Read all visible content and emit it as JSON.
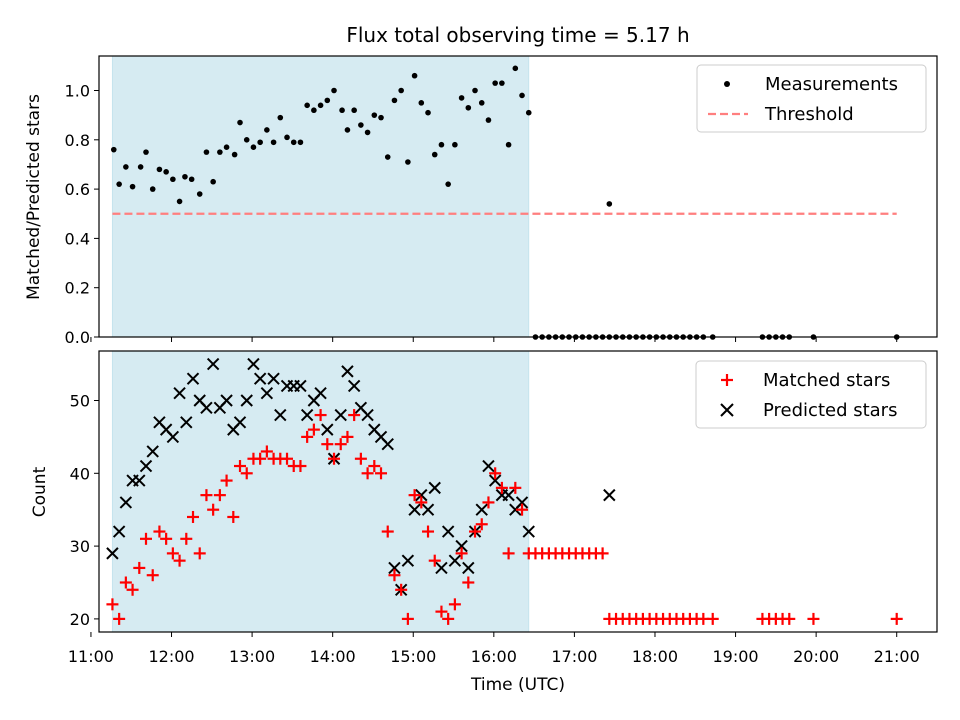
{
  "chart_data": [
    {
      "type": "scatter",
      "title": "Flux total observing time = 5.17 h",
      "xlabel": "",
      "ylabel": "Matched/Predicted stars",
      "xlim": [
        "11:06",
        "21:30"
      ],
      "ylim": [
        0,
        1.14
      ],
      "yticks": [
        "0.0",
        "0.2",
        "0.4",
        "0.6",
        "0.8",
        "1.0"
      ],
      "shaded_interval": [
        "11:16",
        "16:26"
      ],
      "grid": false,
      "legend_position": "top-right",
      "legend": [
        "Measurements",
        "Threshold"
      ],
      "colors": {
        "measurements": "#000000",
        "threshold": "#ff7f7f",
        "shade": "#add8e6"
      },
      "threshold": {
        "y": 0.5,
        "x_start": "11:16",
        "x_end": "21:00"
      },
      "series": [
        {
          "name": "Measurements",
          "points": [
            [
              "11:17",
              0.76
            ],
            [
              "11:21",
              0.62
            ],
            [
              "11:26",
              0.69
            ],
            [
              "11:31",
              0.61
            ],
            [
              "11:37",
              0.69
            ],
            [
              "11:41",
              0.75
            ],
            [
              "11:46",
              0.6
            ],
            [
              "11:51",
              0.68
            ],
            [
              "11:56",
              0.67
            ],
            [
              "12:01",
              0.64
            ],
            [
              "12:06",
              0.55
            ],
            [
              "12:10",
              0.65
            ],
            [
              "12:15",
              0.64
            ],
            [
              "12:21",
              0.58
            ],
            [
              "12:26",
              0.75
            ],
            [
              "12:31",
              0.63
            ],
            [
              "12:36",
              0.75
            ],
            [
              "12:41",
              0.77
            ],
            [
              "12:47",
              0.74
            ],
            [
              "12:51",
              0.87
            ],
            [
              "12:56",
              0.8
            ],
            [
              "13:01",
              0.77
            ],
            [
              "13:06",
              0.79
            ],
            [
              "13:11",
              0.84
            ],
            [
              "13:16",
              0.79
            ],
            [
              "13:21",
              0.89
            ],
            [
              "13:26",
              0.81
            ],
            [
              "13:31",
              0.79
            ],
            [
              "13:36",
              0.79
            ],
            [
              "13:41",
              0.94
            ],
            [
              "13:46",
              0.92
            ],
            [
              "13:51",
              0.94
            ],
            [
              "13:56",
              0.96
            ],
            [
              "14:01",
              1.0
            ],
            [
              "14:07",
              0.92
            ],
            [
              "14:11",
              0.84
            ],
            [
              "14:16",
              0.92
            ],
            [
              "14:21",
              0.86
            ],
            [
              "14:26",
              0.83
            ],
            [
              "14:31",
              0.9
            ],
            [
              "14:36",
              0.89
            ],
            [
              "14:41",
              0.73
            ],
            [
              "14:46",
              0.96
            ],
            [
              "14:51",
              1.0
            ],
            [
              "14:56",
              0.71
            ],
            [
              "15:01",
              1.06
            ],
            [
              "15:06",
              0.95
            ],
            [
              "15:11",
              0.91
            ],
            [
              "15:16",
              0.74
            ],
            [
              "15:21",
              0.78
            ],
            [
              "15:26",
              0.62
            ],
            [
              "15:31",
              0.78
            ],
            [
              "15:36",
              0.97
            ],
            [
              "15:41",
              0.93
            ],
            [
              "15:46",
              1.0
            ],
            [
              "15:51",
              0.95
            ],
            [
              "15:56",
              0.88
            ],
            [
              "16:01",
              1.03
            ],
            [
              "16:06",
              1.03
            ],
            [
              "16:11",
              0.78
            ],
            [
              "16:16",
              1.09
            ],
            [
              "16:21",
              0.98
            ],
            [
              "16:26",
              0.91
            ],
            [
              "16:31",
              0
            ],
            [
              "16:36",
              0
            ],
            [
              "16:41",
              0
            ],
            [
              "16:46",
              0
            ],
            [
              "16:51",
              0
            ],
            [
              "16:56",
              0
            ],
            [
              "17:01",
              0
            ],
            [
              "17:06",
              0
            ],
            [
              "17:11",
              0
            ],
            [
              "17:16",
              0
            ],
            [
              "17:21",
              0
            ],
            [
              "17:26",
              0
            ],
            [
              "17:26",
              0.54
            ],
            [
              "17:31",
              0
            ],
            [
              "17:36",
              0
            ],
            [
              "17:41",
              0
            ],
            [
              "17:46",
              0
            ],
            [
              "17:51",
              0
            ],
            [
              "17:56",
              0
            ],
            [
              "18:01",
              0
            ],
            [
              "18:06",
              0
            ],
            [
              "18:11",
              0
            ],
            [
              "18:16",
              0
            ],
            [
              "18:21",
              0
            ],
            [
              "18:26",
              0
            ],
            [
              "18:31",
              0
            ],
            [
              "18:36",
              0
            ],
            [
              "18:43",
              0
            ],
            [
              "19:20",
              0
            ],
            [
              "19:25",
              0
            ],
            [
              "19:30",
              0
            ],
            [
              "19:35",
              0
            ],
            [
              "19:40",
              0
            ],
            [
              "19:58",
              0
            ],
            [
              "21:00",
              0
            ]
          ]
        }
      ]
    },
    {
      "type": "scatter",
      "title": "",
      "xlabel": "Time (UTC)",
      "ylabel": "Count",
      "xlim": [
        "11:06",
        "21:30"
      ],
      "ylim": [
        18.2,
        56.8
      ],
      "yticks": [
        "20",
        "30",
        "40",
        "50"
      ],
      "xticks": [
        "11:00",
        "12:00",
        "13:00",
        "14:00",
        "15:00",
        "16:00",
        "17:00",
        "18:00",
        "19:00",
        "20:00",
        "21:00"
      ],
      "shaded_interval": [
        "11:16",
        "16:26"
      ],
      "grid": false,
      "legend_position": "top-right",
      "legend": [
        "Matched stars",
        "Predicted stars"
      ],
      "colors": {
        "matched": "#ff0000",
        "predicted": "#000000",
        "shade": "#add8e6"
      },
      "series": [
        {
          "name": "Matched stars",
          "marker": "plus",
          "points": [
            [
              "11:16",
              22
            ],
            [
              "11:21",
              20
            ],
            [
              "11:26",
              25
            ],
            [
              "11:31",
              24
            ],
            [
              "11:36",
              27
            ],
            [
              "11:41",
              31
            ],
            [
              "11:46",
              26
            ],
            [
              "11:51",
              32
            ],
            [
              "11:56",
              31
            ],
            [
              "12:01",
              29
            ],
            [
              "12:06",
              28
            ],
            [
              "12:11",
              31
            ],
            [
              "12:16",
              34
            ],
            [
              "12:21",
              29
            ],
            [
              "12:26",
              37
            ],
            [
              "12:31",
              35
            ],
            [
              "12:36",
              37
            ],
            [
              "12:41",
              39
            ],
            [
              "12:46",
              34
            ],
            [
              "12:51",
              41
            ],
            [
              "12:56",
              40
            ],
            [
              "13:01",
              42
            ],
            [
              "13:06",
              42
            ],
            [
              "13:11",
              43
            ],
            [
              "13:16",
              42
            ],
            [
              "13:21",
              42
            ],
            [
              "13:26",
              42
            ],
            [
              "13:31",
              41
            ],
            [
              "13:36",
              41
            ],
            [
              "13:41",
              45
            ],
            [
              "13:46",
              46
            ],
            [
              "13:51",
              48
            ],
            [
              "13:56",
              44
            ],
            [
              "14:01",
              42
            ],
            [
              "14:06",
              44
            ],
            [
              "14:11",
              45
            ],
            [
              "14:16",
              48
            ],
            [
              "14:21",
              42
            ],
            [
              "14:26",
              40
            ],
            [
              "14:31",
              41
            ],
            [
              "14:36",
              40
            ],
            [
              "14:41",
              32
            ],
            [
              "14:46",
              26
            ],
            [
              "14:51",
              24
            ],
            [
              "14:56",
              20
            ],
            [
              "15:01",
              37
            ],
            [
              "15:06",
              36
            ],
            [
              "15:11",
              32
            ],
            [
              "15:16",
              28
            ],
            [
              "15:21",
              21
            ],
            [
              "15:26",
              20
            ],
            [
              "15:31",
              22
            ],
            [
              "15:36",
              29
            ],
            [
              "15:41",
              25
            ],
            [
              "15:46",
              32
            ],
            [
              "15:51",
              33
            ],
            [
              "15:56",
              36
            ],
            [
              "16:01",
              40
            ],
            [
              "16:06",
              38
            ],
            [
              "16:11",
              29
            ],
            [
              "16:16",
              38
            ],
            [
              "16:21",
              35
            ],
            [
              "16:26",
              29
            ],
            [
              "16:31",
              29
            ],
            [
              "16:36",
              29
            ],
            [
              "16:41",
              29
            ],
            [
              "16:46",
              29
            ],
            [
              "16:51",
              29
            ],
            [
              "16:56",
              29
            ],
            [
              "17:01",
              29
            ],
            [
              "17:06",
              29
            ],
            [
              "17:11",
              29
            ],
            [
              "17:16",
              29
            ],
            [
              "17:21",
              29
            ],
            [
              "17:26",
              20
            ],
            [
              "17:31",
              20
            ],
            [
              "17:36",
              20
            ],
            [
              "17:41",
              20
            ],
            [
              "17:46",
              20
            ],
            [
              "17:51",
              20
            ],
            [
              "17:56",
              20
            ],
            [
              "18:01",
              20
            ],
            [
              "18:06",
              20
            ],
            [
              "18:11",
              20
            ],
            [
              "18:16",
              20
            ],
            [
              "18:21",
              20
            ],
            [
              "18:26",
              20
            ],
            [
              "18:31",
              20
            ],
            [
              "18:36",
              20
            ],
            [
              "18:43",
              20
            ],
            [
              "19:20",
              20
            ],
            [
              "19:25",
              20
            ],
            [
              "19:30",
              20
            ],
            [
              "19:35",
              20
            ],
            [
              "19:40",
              20
            ],
            [
              "19:58",
              20
            ],
            [
              "21:00",
              20
            ]
          ]
        },
        {
          "name": "Predicted stars",
          "marker": "x",
          "points": [
            [
              "11:16",
              29
            ],
            [
              "11:21",
              32
            ],
            [
              "11:26",
              36
            ],
            [
              "11:31",
              39
            ],
            [
              "11:36",
              39
            ],
            [
              "11:41",
              41
            ],
            [
              "11:46",
              43
            ],
            [
              "11:51",
              47
            ],
            [
              "11:56",
              46
            ],
            [
              "12:01",
              45
            ],
            [
              "12:06",
              51
            ],
            [
              "12:11",
              47
            ],
            [
              "12:16",
              53
            ],
            [
              "12:21",
              50
            ],
            [
              "12:26",
              49
            ],
            [
              "12:31",
              55
            ],
            [
              "12:36",
              49
            ],
            [
              "12:41",
              50
            ],
            [
              "12:46",
              46
            ],
            [
              "12:51",
              47
            ],
            [
              "12:56",
              50
            ],
            [
              "13:01",
              55
            ],
            [
              "13:06",
              53
            ],
            [
              "13:11",
              51
            ],
            [
              "13:16",
              53
            ],
            [
              "13:21",
              48
            ],
            [
              "13:26",
              52
            ],
            [
              "13:31",
              52
            ],
            [
              "13:36",
              52
            ],
            [
              "13:41",
              48
            ],
            [
              "13:46",
              50
            ],
            [
              "13:51",
              51
            ],
            [
              "13:56",
              46
            ],
            [
              "14:01",
              42
            ],
            [
              "14:06",
              48
            ],
            [
              "14:11",
              54
            ],
            [
              "14:16",
              52
            ],
            [
              "14:21",
              49
            ],
            [
              "14:26",
              48
            ],
            [
              "14:31",
              46
            ],
            [
              "14:36",
              45
            ],
            [
              "14:41",
              44
            ],
            [
              "14:46",
              27
            ],
            [
              "14:51",
              24
            ],
            [
              "14:56",
              28
            ],
            [
              "15:01",
              35
            ],
            [
              "15:06",
              37
            ],
            [
              "15:11",
              35
            ],
            [
              "15:16",
              38
            ],
            [
              "15:21",
              27
            ],
            [
              "15:26",
              32
            ],
            [
              "15:31",
              28
            ],
            [
              "15:36",
              30
            ],
            [
              "15:41",
              27
            ],
            [
              "15:46",
              32
            ],
            [
              "15:51",
              35
            ],
            [
              "15:56",
              41
            ],
            [
              "16:01",
              39
            ],
            [
              "16:06",
              37
            ],
            [
              "16:11",
              37
            ],
            [
              "16:16",
              35
            ],
            [
              "16:21",
              36
            ],
            [
              "16:26",
              32
            ],
            [
              "17:26",
              37
            ]
          ]
        }
      ]
    }
  ]
}
